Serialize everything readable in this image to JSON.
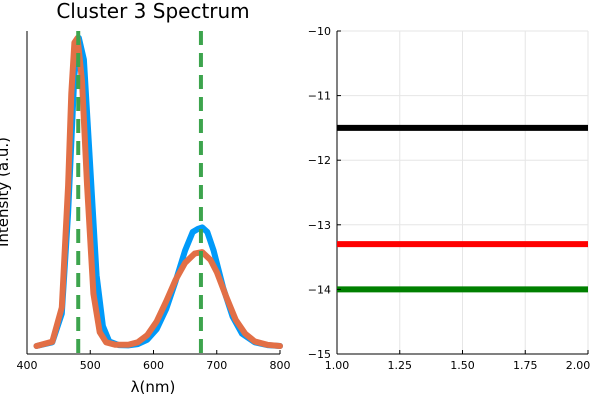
{
  "chart_data": [
    {
      "type": "line",
      "title": "Cluster 3 Spectrum",
      "xlabel": "λ(nm)",
      "ylabel": "Intensity (a.u.)",
      "xlim": [
        400,
        800
      ],
      "x_ticks": [
        400,
        500,
        600,
        700,
        800
      ],
      "y_ticks_shown": false,
      "grid": false,
      "legend": "none",
      "series": [
        {
          "color": "#009af9",
          "x": [
            415,
            440,
            455,
            465,
            475,
            482,
            490,
            500,
            510,
            520,
            530,
            545,
            560,
            575,
            590,
            605,
            620,
            635,
            650,
            662,
            670,
            677,
            685,
            695,
            710,
            725,
            740,
            760,
            780,
            800
          ],
          "y": [
            0.0,
            0.012,
            0.105,
            0.43,
            0.88,
            1.0,
            0.93,
            0.58,
            0.23,
            0.065,
            0.015,
            0.003,
            0.002,
            0.006,
            0.02,
            0.055,
            0.12,
            0.21,
            0.31,
            0.37,
            0.38,
            0.385,
            0.37,
            0.31,
            0.19,
            0.095,
            0.04,
            0.012,
            0.003,
            0.0
          ]
        },
        {
          "color": "#e26f46",
          "x": [
            415,
            440,
            455,
            465,
            470,
            475,
            480,
            487,
            495,
            505,
            515,
            525,
            540,
            560,
            575,
            590,
            605,
            620,
            635,
            650,
            665,
            677,
            690,
            700,
            715,
            730,
            745,
            760,
            780,
            800
          ],
          "y": [
            0.0,
            0.014,
            0.125,
            0.52,
            0.82,
            0.985,
            1.0,
            0.86,
            0.52,
            0.17,
            0.045,
            0.012,
            0.004,
            0.004,
            0.012,
            0.035,
            0.08,
            0.145,
            0.215,
            0.27,
            0.3,
            0.305,
            0.28,
            0.24,
            0.16,
            0.085,
            0.04,
            0.015,
            0.004,
            0.0
          ]
        },
        {
          "color": "#3da44d",
          "style": "dashed",
          "type": "vline",
          "x": [
            481,
            481
          ]
        },
        {
          "color": "#3da44d",
          "style": "dashed",
          "type": "vline",
          "x": [
            675,
            675
          ]
        }
      ]
    },
    {
      "type": "line",
      "title": "",
      "xlabel": "",
      "ylabel": "",
      "xlim": [
        1.0,
        2.0
      ],
      "ylim": [
        -15,
        -10
      ],
      "x_ticks": [
        "1.00",
        "1.25",
        "1.50",
        "1.75",
        "2.00"
      ],
      "y_ticks": [
        "-15",
        "-14",
        "-13",
        "-12",
        "-11",
        "-10"
      ],
      "grid": true,
      "legend": "none",
      "series": [
        {
          "color": "#000000",
          "type": "hline",
          "x": [
            1.0,
            2.0
          ],
          "y": [
            -11.5,
            -11.5
          ]
        },
        {
          "color": "#ff0000",
          "type": "hline",
          "x": [
            1.0,
            2.0
          ],
          "y": [
            -13.3,
            -13.3
          ]
        },
        {
          "color": "#008000",
          "type": "hline",
          "x": [
            1.0,
            2.0
          ],
          "y": [
            -14.0,
            -14.0
          ]
        }
      ]
    }
  ]
}
